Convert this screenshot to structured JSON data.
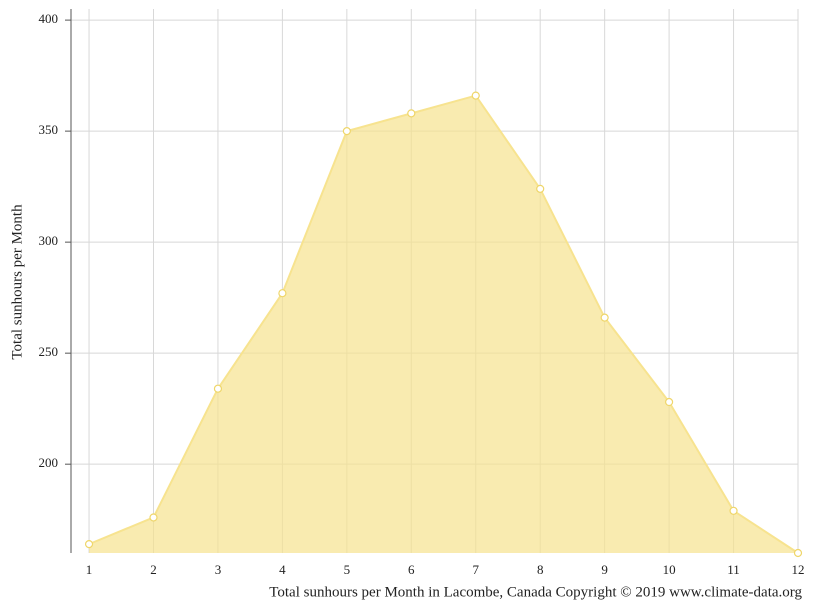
{
  "chart_data": {
    "type": "area",
    "title": "Total sunhours per Month in Lacombe, Canada Copyright © 2019 www.climate-data.org",
    "y_label": "Total sunhours per Month",
    "x": [
      1,
      2,
      3,
      4,
      5,
      6,
      7,
      8,
      9,
      10,
      11,
      12
    ],
    "values": [
      164,
      176,
      234,
      277,
      350,
      358,
      366,
      324,
      266,
      228,
      179,
      160
    ],
    "color": "#f7e38f",
    "xlim": [
      0.72,
      12
    ],
    "xticks": [
      1,
      2,
      3,
      4,
      5,
      6,
      7,
      8,
      9,
      10,
      11,
      12
    ],
    "ylim": [
      160,
      405
    ],
    "yticks": [
      200,
      250,
      300,
      350,
      400
    ],
    "grid": true
  }
}
